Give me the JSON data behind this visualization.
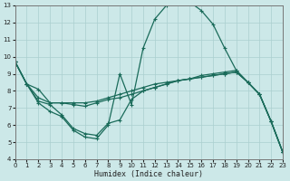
{
  "xlabel": "Humidex (Indice chaleur)",
  "bg_color": "#cce8e8",
  "grid_color": "#aacfcf",
  "line_color": "#1a6b5a",
  "x_min": 0,
  "x_max": 23,
  "y_min": 4,
  "y_max": 13,
  "lines": [
    {
      "x": [
        0,
        1,
        2,
        3,
        4,
        5,
        6,
        7,
        8,
        9,
        10,
        11,
        12,
        13,
        14,
        15,
        16,
        17,
        18,
        19,
        20,
        21,
        22,
        23
      ],
      "y": [
        9.7,
        8.4,
        8.1,
        7.3,
        7.3,
        7.3,
        7.3,
        7.4,
        7.6,
        7.8,
        8.0,
        8.2,
        8.4,
        8.5,
        8.6,
        8.7,
        8.8,
        8.9,
        9.0,
        9.1,
        8.5,
        7.8,
        6.2,
        4.4
      ]
    },
    {
      "x": [
        0,
        1,
        2,
        3,
        4,
        5,
        6,
        7,
        8,
        9,
        10,
        11,
        12,
        13,
        14,
        15,
        16,
        17,
        18,
        19,
        20,
        21,
        22,
        23
      ],
      "y": [
        9.7,
        8.4,
        7.3,
        6.8,
        6.5,
        5.7,
        5.3,
        5.2,
        6.0,
        9.0,
        7.2,
        10.5,
        12.2,
        13.0,
        13.2,
        13.2,
        12.7,
        11.9,
        10.5,
        9.2,
        8.5,
        7.8,
        6.2,
        4.4
      ]
    },
    {
      "x": [
        0,
        1,
        2,
        3,
        4,
        5,
        6,
        7,
        8,
        9,
        10,
        11,
        12,
        13,
        14,
        15,
        16,
        17,
        18,
        19,
        20,
        21,
        22,
        23
      ],
      "y": [
        9.7,
        8.4,
        7.4,
        7.2,
        6.6,
        5.8,
        5.5,
        5.4,
        6.1,
        6.3,
        7.5,
        8.0,
        8.2,
        8.4,
        8.6,
        8.7,
        8.9,
        9.0,
        9.1,
        9.2,
        8.5,
        7.8,
        6.2,
        4.4
      ]
    },
    {
      "x": [
        0,
        1,
        2,
        3,
        4,
        5,
        6,
        7,
        8,
        9,
        10,
        11,
        12,
        13,
        14,
        15,
        16,
        17,
        18,
        19,
        20,
        21,
        22,
        23
      ],
      "y": [
        9.7,
        8.4,
        7.6,
        7.3,
        7.3,
        7.2,
        7.1,
        7.3,
        7.5,
        7.6,
        7.8,
        8.0,
        8.2,
        8.4,
        8.6,
        8.7,
        8.8,
        8.9,
        9.0,
        9.1,
        8.5,
        7.8,
        6.2,
        4.4
      ]
    }
  ]
}
